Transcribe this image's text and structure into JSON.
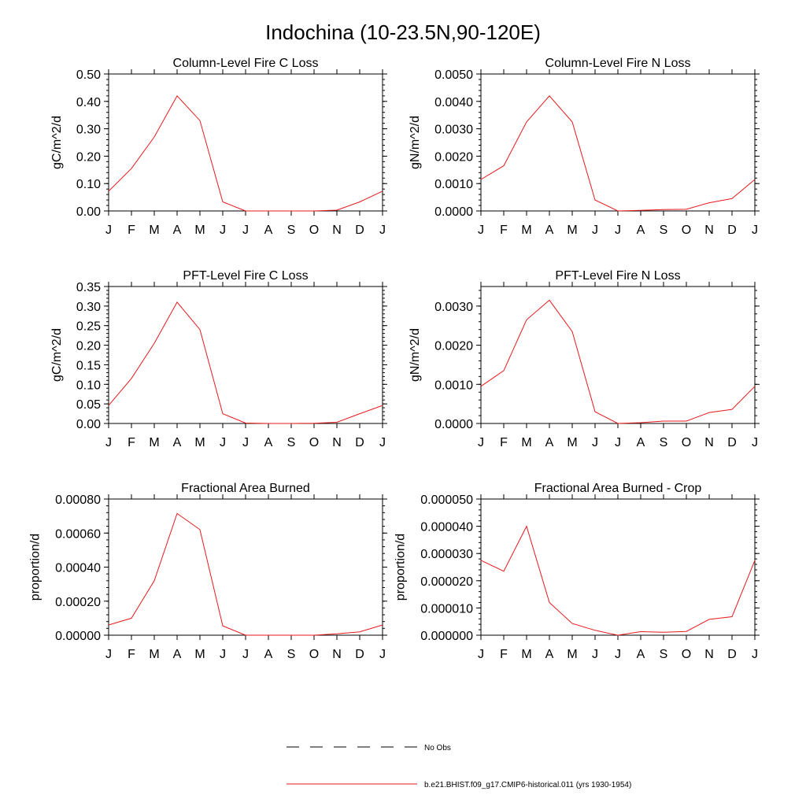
{
  "page": {
    "title": "Indochina (10-23.5N,90-120E)"
  },
  "legend": {
    "items": [
      {
        "label": "No Obs",
        "color": "#000000",
        "style": "dashed"
      },
      {
        "label": "b.e21.BHIST.f09_g17.CMIP6-historical.011 (yrs 1930-1954)",
        "color": "#e8191c",
        "style": "solid"
      }
    ]
  },
  "chart_data": [
    {
      "type": "line",
      "title": "Column-Level Fire C Loss",
      "ylabel": "gC/m^2/d",
      "categories": [
        "J",
        "F",
        "M",
        "A",
        "M",
        "J",
        "J",
        "A",
        "S",
        "O",
        "N",
        "D",
        "J"
      ],
      "ylim": [
        0,
        0.5
      ],
      "yticks": [
        "0.00",
        "0.10",
        "0.20",
        "0.30",
        "0.40",
        "0.50"
      ],
      "series": [
        {
          "values": [
            0.072,
            0.155,
            0.27,
            0.42,
            0.33,
            0.033,
            0.0,
            0.0,
            0.0,
            0.0,
            0.003,
            0.033,
            0.072
          ]
        }
      ]
    },
    {
      "type": "line",
      "title": "Column-Level Fire N Loss",
      "ylabel": "gN/m^2/d",
      "categories": [
        "J",
        "F",
        "M",
        "A",
        "M",
        "J",
        "J",
        "A",
        "S",
        "O",
        "N",
        "D",
        "J"
      ],
      "ylim": [
        0,
        0.005
      ],
      "yticks": [
        "0.0000",
        "0.0010",
        "0.0020",
        "0.0030",
        "0.0040",
        "0.0050"
      ],
      "series": [
        {
          "values": [
            0.00115,
            0.00165,
            0.00325,
            0.0042,
            0.00325,
            0.0004,
            0.0,
            2e-05,
            5e-05,
            6e-05,
            0.0003,
            0.00045,
            0.00115
          ]
        }
      ]
    },
    {
      "type": "line",
      "title": "PFT-Level Fire C Loss",
      "ylabel": "gC/m^2/d",
      "categories": [
        "J",
        "F",
        "M",
        "A",
        "M",
        "J",
        "J",
        "A",
        "S",
        "O",
        "N",
        "D",
        "J"
      ],
      "ylim": [
        0,
        0.35
      ],
      "yticks": [
        "0.00",
        "0.05",
        "0.10",
        "0.15",
        "0.20",
        "0.25",
        "0.30",
        "0.35"
      ],
      "series": [
        {
          "values": [
            0.046,
            0.115,
            0.205,
            0.31,
            0.24,
            0.025,
            0.001,
            0.0,
            0.0,
            0.0005,
            0.003,
            0.025,
            0.046
          ]
        }
      ]
    },
    {
      "type": "line",
      "title": "PFT-Level Fire N Loss",
      "ylabel": "gN/m^2/d",
      "categories": [
        "J",
        "F",
        "M",
        "A",
        "M",
        "J",
        "J",
        "A",
        "S",
        "O",
        "N",
        "D",
        "J"
      ],
      "ylim": [
        0,
        0.0035
      ],
      "yticks": [
        "0.0000",
        "0.0010",
        "0.0020",
        "0.0030"
      ],
      "series": [
        {
          "values": [
            0.00095,
            0.00135,
            0.00265,
            0.00315,
            0.00235,
            0.0003,
            0.0,
            2e-05,
            6e-05,
            6e-05,
            0.00028,
            0.00036,
            0.00095
          ]
        }
      ]
    },
    {
      "type": "line",
      "title": "Fractional Area Burned",
      "ylabel": "proportion/d",
      "categories": [
        "J",
        "F",
        "M",
        "A",
        "M",
        "J",
        "J",
        "A",
        "S",
        "O",
        "N",
        "D",
        "J"
      ],
      "ylim": [
        0,
        0.0008
      ],
      "yticks": [
        "0.00000",
        "0.00020",
        "0.00040",
        "0.00060",
        "0.00080"
      ],
      "series": [
        {
          "values": [
            6e-05,
            0.0001,
            0.00032,
            0.000715,
            0.00062,
            5.5e-05,
            0.0,
            0.0,
            0.0,
            0.0,
            8e-06,
            2e-05,
            6e-05
          ]
        }
      ]
    },
    {
      "type": "line",
      "title": "Fractional Area Burned - Crop",
      "ylabel": "proportion/d",
      "categories": [
        "J",
        "F",
        "M",
        "A",
        "M",
        "J",
        "J",
        "A",
        "S",
        "O",
        "N",
        "D",
        "J"
      ],
      "ylim": [
        0,
        5e-05
      ],
      "yticks": [
        "0.000000",
        "0.000010",
        "0.000020",
        "0.000030",
        "0.000040",
        "0.000050"
      ],
      "series": [
        {
          "values": [
            2.75e-05,
            2.35e-05,
            4e-05,
            1.2e-05,
            4.3e-06,
            1.8e-06,
            0.0,
            1.3e-06,
            1.1e-06,
            1.4e-06,
            5.8e-06,
            6.8e-06,
            2.75e-05
          ]
        }
      ]
    }
  ]
}
